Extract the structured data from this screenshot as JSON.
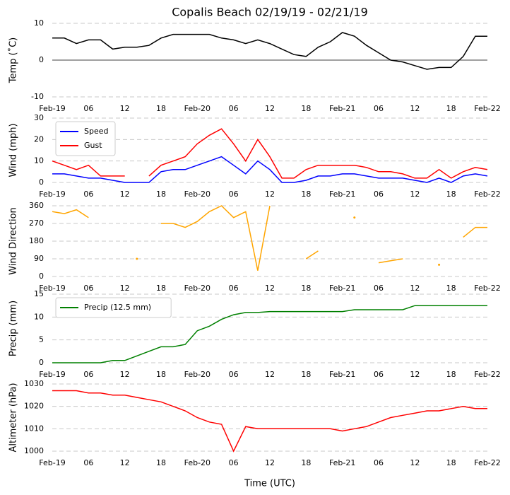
{
  "chart_data": [
    {
      "type": "line",
      "title": "Copalis Beach 02/19/19 - 02/21/19",
      "ylabel": "Temp (˚C)",
      "ylim": [
        -10,
        10
      ],
      "yticks": [
        -10,
        0,
        10
      ],
      "zero_line": true,
      "grid": true,
      "xlim": [
        0,
        72
      ],
      "xticks": [
        {
          "value": 0,
          "label": "Feb-19"
        },
        {
          "value": 6,
          "label": "06"
        },
        {
          "value": 12,
          "label": "12"
        },
        {
          "value": 18,
          "label": "18"
        },
        {
          "value": 24,
          "label": "Feb-20"
        },
        {
          "value": 30,
          "label": "06"
        },
        {
          "value": 36,
          "label": "12"
        },
        {
          "value": 42,
          "label": "18"
        },
        {
          "value": 48,
          "label": "Feb-21"
        },
        {
          "value": 54,
          "label": "06"
        },
        {
          "value": 60,
          "label": "12"
        },
        {
          "value": 66,
          "label": "18"
        },
        {
          "value": 72,
          "label": "Feb-22"
        }
      ],
      "x": [
        0,
        2,
        4,
        6,
        8,
        10,
        12,
        14,
        16,
        18,
        20,
        22,
        24,
        26,
        28,
        30,
        32,
        34,
        36,
        38,
        40,
        42,
        44,
        46,
        48,
        50,
        52,
        54,
        56,
        58,
        60,
        62,
        64,
        66,
        68,
        70,
        72
      ],
      "series": [
        {
          "color": "#000000",
          "values": [
            6,
            6,
            4.5,
            5.5,
            5.5,
            3,
            3.5,
            3.5,
            4,
            6,
            7,
            7,
            7,
            7,
            6,
            5.5,
            4.5,
            5.5,
            4.5,
            3,
            1.5,
            1,
            3.5,
            5,
            7.5,
            6.5,
            4,
            2,
            0,
            -0.5,
            -1.5,
            -2.5,
            -2,
            -2,
            1,
            6.5,
            6.5
          ]
        }
      ]
    },
    {
      "type": "line",
      "ylabel": "Wind (mph)",
      "ylim": [
        0,
        30
      ],
      "yticks": [
        0,
        10,
        20,
        30
      ],
      "grid": true,
      "legend": "upper left",
      "xlim": [
        0,
        72
      ],
      "xticks": [
        {
          "value": 0,
          "label": "Feb-19"
        },
        {
          "value": 6,
          "label": "06"
        },
        {
          "value": 12,
          "label": "12"
        },
        {
          "value": 18,
          "label": "18"
        },
        {
          "value": 24,
          "label": "Feb-20"
        },
        {
          "value": 30,
          "label": "06"
        },
        {
          "value": 36,
          "label": "12"
        },
        {
          "value": 42,
          "label": "18"
        },
        {
          "value": 48,
          "label": "Feb-21"
        },
        {
          "value": 54,
          "label": "06"
        },
        {
          "value": 60,
          "label": "12"
        },
        {
          "value": 66,
          "label": "18"
        },
        {
          "value": 72,
          "label": "Feb-22"
        }
      ],
      "x": [
        0,
        2,
        4,
        6,
        8,
        10,
        12,
        14,
        16,
        18,
        20,
        22,
        24,
        26,
        28,
        30,
        32,
        34,
        36,
        38,
        40,
        42,
        44,
        46,
        48,
        50,
        52,
        54,
        56,
        58,
        60,
        62,
        64,
        66,
        68,
        70,
        72
      ],
      "series": [
        {
          "name": "Speed",
          "color": "#0000ff",
          "values": [
            4,
            4,
            3,
            2,
            2,
            1,
            0,
            0,
            0,
            5,
            6,
            6,
            8,
            10,
            12,
            8,
            4,
            10,
            6,
            0,
            0,
            1,
            3,
            3,
            4,
            4,
            3,
            2,
            2,
            2,
            1,
            0,
            2,
            0,
            3,
            4,
            3
          ]
        },
        {
          "name": "Gust",
          "color": "#ff0000",
          "values": [
            10,
            8,
            6,
            8,
            3,
            3,
            3,
            null,
            3,
            8,
            10,
            12,
            18,
            22,
            25,
            18,
            10,
            20,
            12,
            2,
            2,
            6,
            8,
            8,
            8,
            8,
            7,
            5,
            5,
            4,
            2,
            2,
            6,
            2,
            5,
            7,
            6
          ]
        }
      ]
    },
    {
      "type": "line",
      "ylabel": "Wind Direction",
      "ylim": [
        0,
        360
      ],
      "yticks": [
        0,
        90,
        180,
        270,
        360
      ],
      "grid": true,
      "xlim": [
        0,
        72
      ],
      "xticks": [
        {
          "value": 0,
          "label": "Feb-19"
        },
        {
          "value": 6,
          "label": "06"
        },
        {
          "value": 12,
          "label": "12"
        },
        {
          "value": 18,
          "label": "18"
        },
        {
          "value": 24,
          "label": "Feb-20"
        },
        {
          "value": 30,
          "label": "06"
        },
        {
          "value": 36,
          "label": "12"
        },
        {
          "value": 42,
          "label": "18"
        },
        {
          "value": 48,
          "label": "Feb-21"
        },
        {
          "value": 54,
          "label": "06"
        },
        {
          "value": 60,
          "label": "12"
        },
        {
          "value": 66,
          "label": "18"
        },
        {
          "value": 72,
          "label": "Feb-22"
        }
      ],
      "x": [
        0,
        2,
        4,
        6,
        8,
        10,
        12,
        14,
        16,
        18,
        20,
        22,
        24,
        26,
        28,
        30,
        32,
        34,
        36,
        38,
        40,
        42,
        44,
        46,
        48,
        50,
        52,
        54,
        56,
        58,
        60,
        62,
        64,
        66,
        68,
        70,
        72
      ],
      "series": [
        {
          "color": "#ffa500",
          "values": [
            330,
            320,
            340,
            300,
            null,
            null,
            null,
            90,
            null,
            270,
            270,
            250,
            280,
            330,
            360,
            300,
            330,
            30,
            360,
            null,
            null,
            90,
            130,
            null,
            null,
            300,
            null,
            70,
            80,
            90,
            null,
            null,
            60,
            null,
            200,
            250,
            250
          ]
        }
      ]
    },
    {
      "type": "line",
      "ylabel": "Precip (mm)",
      "ylim": [
        0,
        15
      ],
      "yticks": [
        0,
        5,
        10,
        15
      ],
      "grid": true,
      "legend": "upper left",
      "xlim": [
        0,
        72
      ],
      "xticks": [
        {
          "value": 0,
          "label": "Feb-19"
        },
        {
          "value": 6,
          "label": "06"
        },
        {
          "value": 12,
          "label": "12"
        },
        {
          "value": 18,
          "label": "18"
        },
        {
          "value": 24,
          "label": "Feb-20"
        },
        {
          "value": 30,
          "label": "06"
        },
        {
          "value": 36,
          "label": "12"
        },
        {
          "value": 42,
          "label": "18"
        },
        {
          "value": 48,
          "label": "Feb-21"
        },
        {
          "value": 54,
          "label": "06"
        },
        {
          "value": 60,
          "label": "12"
        },
        {
          "value": 66,
          "label": "18"
        },
        {
          "value": 72,
          "label": "Feb-22"
        }
      ],
      "x": [
        0,
        2,
        4,
        6,
        8,
        10,
        12,
        14,
        16,
        18,
        20,
        22,
        24,
        26,
        28,
        30,
        32,
        34,
        36,
        38,
        40,
        42,
        44,
        46,
        48,
        50,
        52,
        54,
        56,
        58,
        60,
        62,
        64,
        66,
        68,
        70,
        72
      ],
      "series": [
        {
          "name": "Precip (12.5 mm)",
          "color": "#008000",
          "values": [
            0,
            0,
            0,
            0,
            0,
            0.5,
            0.5,
            1.5,
            2.5,
            3.5,
            3.5,
            4,
            7,
            8,
            9.5,
            10.5,
            11,
            11,
            11.2,
            11.2,
            11.2,
            11.2,
            11.2,
            11.2,
            11.2,
            11.6,
            11.6,
            11.6,
            11.6,
            11.6,
            12.5,
            12.5,
            12.5,
            12.5,
            12.5,
            12.5,
            12.5
          ]
        }
      ]
    },
    {
      "type": "line",
      "ylabel": "Altimeter (hPa)",
      "xlabel": "Time (UTC)",
      "ylim": [
        1000,
        1030
      ],
      "yticks": [
        1000,
        1010,
        1020,
        1030
      ],
      "grid": true,
      "xlim": [
        0,
        72
      ],
      "xticks": [
        {
          "value": 0,
          "label": "Feb-19"
        },
        {
          "value": 6,
          "label": "06"
        },
        {
          "value": 12,
          "label": "12"
        },
        {
          "value": 18,
          "label": "18"
        },
        {
          "value": 24,
          "label": "Feb-20"
        },
        {
          "value": 30,
          "label": "06"
        },
        {
          "value": 36,
          "label": "12"
        },
        {
          "value": 42,
          "label": "18"
        },
        {
          "value": 48,
          "label": "Feb-21"
        },
        {
          "value": 54,
          "label": "06"
        },
        {
          "value": 60,
          "label": "12"
        },
        {
          "value": 66,
          "label": "18"
        },
        {
          "value": 72,
          "label": "Feb-22"
        }
      ],
      "x": [
        0,
        2,
        4,
        6,
        8,
        10,
        12,
        14,
        16,
        18,
        20,
        22,
        24,
        26,
        28,
        30,
        32,
        34,
        36,
        38,
        40,
        42,
        44,
        46,
        48,
        50,
        52,
        54,
        56,
        58,
        60,
        62,
        64,
        66,
        68,
        70,
        72
      ],
      "series": [
        {
          "color": "#ff0000",
          "values": [
            1027,
            1027,
            1027,
            1026,
            1026,
            1025,
            1025,
            1024,
            1023,
            1022,
            1020,
            1018,
            1015,
            1013,
            1012,
            1000,
            1011,
            1010,
            1010,
            1010,
            1010,
            1010,
            1010,
            1010,
            1009,
            1010,
            1011,
            1013,
            1015,
            1016,
            1017,
            1018,
            1018,
            1019,
            1020,
            1019,
            1019
          ]
        }
      ]
    }
  ]
}
